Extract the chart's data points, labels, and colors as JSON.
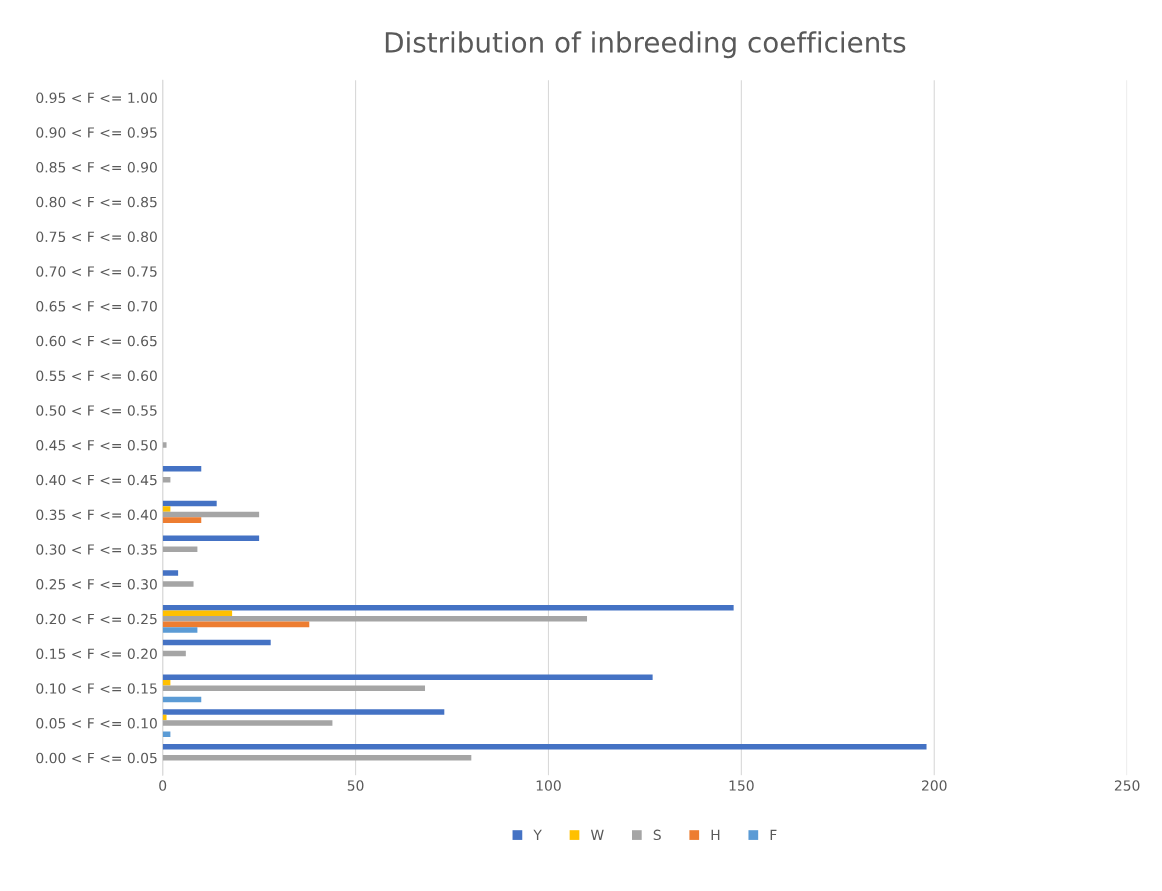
{
  "chart_data": {
    "type": "bar",
    "orientation": "horizontal",
    "title": "Distribution of inbreeding coefficients",
    "categories": [
      "0.95 < F <= 1.00",
      "0.90 < F <= 0.95",
      "0.85 < F <= 0.90",
      "0.80 < F <= 0.85",
      "0.75 < F <= 0.80",
      "0.70 < F <= 0.75",
      "0.65 < F <= 0.70",
      "0.60 < F <= 0.65",
      "0.55 < F <= 0.60",
      "0.50 < F <= 0.55",
      "0.45 < F <= 0.50",
      "0.40 < F <= 0.45",
      "0.35 < F <= 0.40",
      "0.30 < F <= 0.35",
      "0.25 < F <= 0.30",
      "0.20 < F <= 0.25",
      "0.15 < F <= 0.20",
      "0.10 < F <= 0.15",
      "0.05 < F <= 0.10",
      "0.00 < F <= 0.05"
    ],
    "series": [
      {
        "name": "Y",
        "color": "#4472c4",
        "values": [
          0,
          0,
          0,
          0,
          0,
          0,
          0,
          0,
          0,
          0,
          0,
          10,
          14,
          25,
          4,
          148,
          28,
          127,
          73,
          198
        ]
      },
      {
        "name": "W",
        "color": "#ffc000",
        "values": [
          0,
          0,
          0,
          0,
          0,
          0,
          0,
          0,
          0,
          0,
          0,
          0,
          2,
          0,
          0,
          18,
          0,
          2,
          1,
          0
        ]
      },
      {
        "name": "S",
        "color": "#a5a5a5",
        "values": [
          0,
          0,
          0,
          0,
          0,
          0,
          0,
          0,
          0,
          0,
          1,
          2,
          25,
          9,
          8,
          110,
          6,
          68,
          44,
          80
        ]
      },
      {
        "name": "H",
        "color": "#ed7d31",
        "values": [
          0,
          0,
          0,
          0,
          0,
          0,
          0,
          0,
          0,
          0,
          0,
          0,
          10,
          0,
          0,
          38,
          0,
          0,
          0,
          0
        ]
      },
      {
        "name": "F",
        "color": "#5b9bd5",
        "values": [
          0,
          0,
          0,
          0,
          0,
          0,
          0,
          0,
          0,
          0,
          0,
          0,
          0,
          0,
          0,
          9,
          0,
          10,
          2,
          0
        ]
      }
    ],
    "xlim": [
      0,
      250
    ],
    "xticks": [
      0,
      50,
      100,
      150,
      200,
      250
    ],
    "grid": "x",
    "legend": "bottom"
  }
}
